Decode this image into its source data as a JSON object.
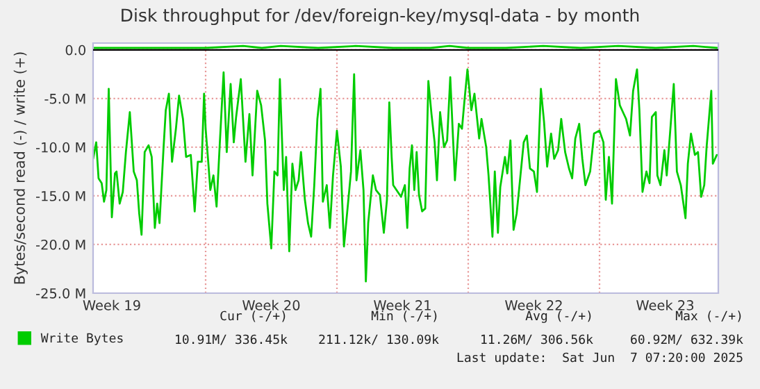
{
  "chart_data": {
    "type": "line",
    "title": "Disk throughput for /dev/foreign-key/mysql-data - by month",
    "ylabel": "Bytes/second read (-) / write (+)",
    "xlim": [
      "2025-05-06T00:00",
      "2025-06-08T08:00"
    ],
    "xticks": [
      {
        "value": "2025-05-07T00:00",
        "label": "Week 19"
      },
      {
        "value": "2025-05-15T12:00",
        "label": "Week 20"
      },
      {
        "value": "2025-05-22T12:00",
        "label": "Week 21"
      },
      {
        "value": "2025-05-29T12:00",
        "label": "Week 22"
      },
      {
        "value": "2025-06-05T12:00",
        "label": "Week 23"
      }
    ],
    "ylim": [
      -25,
      0.7
    ],
    "yticks": [
      {
        "value": 0,
        "label": "0.0"
      },
      {
        "value": -5,
        "label": "-5.0 M"
      },
      {
        "value": -10,
        "label": "-10.0 M"
      },
      {
        "value": -15,
        "label": "-15.0 M"
      },
      {
        "value": -20,
        "label": "-20.0 M"
      },
      {
        "value": -25,
        "label": "-25.0 M"
      }
    ],
    "grid": "y",
    "legend": "bottom",
    "ref_lines": [
      {
        "axis": "x",
        "value": "2025-05-12",
        "color": "#e89a9a",
        "line_style": "dotted"
      },
      {
        "axis": "x",
        "value": "2025-05-19",
        "color": "#e89a9a",
        "line_style": "dotted"
      },
      {
        "axis": "x",
        "value": "2025-05-26",
        "color": "#e89a9a",
        "line_style": "dotted"
      },
      {
        "axis": "x",
        "value": "2025-06-02",
        "color": "#e89a9a",
        "line_style": "dotted"
      },
      {
        "axis": "y",
        "value": 0,
        "color": "#000000",
        "line_style": "solid"
      }
    ],
    "series": [
      {
        "name": "Write Bytes",
        "color": "#00cc00",
        "x": [
          "2025-05-06T00:00",
          "2025-05-06T04:00",
          "2025-05-06T07:00",
          "2025-05-06T11:00",
          "2025-05-06T14:00",
          "2025-05-06T17:00",
          "2025-05-06T20:00",
          "2025-05-07T00:00",
          "2025-05-07T04:00",
          "2025-05-07T06:00",
          "2025-05-07T10:00",
          "2025-05-07T14:00",
          "2025-05-07T18:00",
          "2025-05-07T23:00",
          "2025-05-08T04:00",
          "2025-05-08T08:00",
          "2025-05-08T11:00",
          "2025-05-08T14:00",
          "2025-05-08T18:00",
          "2025-05-08T23:00",
          "2025-05-09T03:00",
          "2025-05-09T07:00",
          "2025-05-09T10:00",
          "2025-05-09T13:00",
          "2025-05-09T18:00",
          "2025-05-09T21:00",
          "2025-05-10T01:00",
          "2025-05-10T05:00",
          "2025-05-10T10:00",
          "2025-05-10T14:00",
          "2025-05-10T19:00",
          "2025-05-10T23:00",
          "2025-05-11T05:00",
          "2025-05-11T10:00",
          "2025-05-11T14:00",
          "2025-05-11T19:00",
          "2025-05-11T22:00",
          "2025-05-12T00:00",
          "2025-05-12T04:00",
          "2025-05-12T06:00",
          "2025-05-12T10:00",
          "2025-05-12T14:00",
          "2025-05-12T18:00",
          "2025-05-12T23:00",
          "2025-05-13T03:00",
          "2025-05-13T08:00",
          "2025-05-13T12:00",
          "2025-05-13T15:00",
          "2025-05-13T21:00",
          "2025-05-14T03:00",
          "2025-05-14T08:00",
          "2025-05-14T12:00",
          "2025-05-14T18:00",
          "2025-05-14T23:00",
          "2025-05-15T04:00",
          "2025-05-15T07:00",
          "2025-05-15T12:00",
          "2025-05-15T16:00",
          "2025-05-15T20:00",
          "2025-05-15T23:00",
          "2025-05-16T04:00",
          "2025-05-16T07:00",
          "2025-05-16T11:00",
          "2025-05-16T15:00",
          "2025-05-16T19:00",
          "2025-05-16T23:00",
          "2025-05-17T02:00",
          "2025-05-17T07:00",
          "2025-05-17T11:00",
          "2025-05-17T15:00",
          "2025-05-17T19:00",
          "2025-05-17T23:00",
          "2025-05-18T03:00",
          "2025-05-18T06:00",
          "2025-05-18T11:00",
          "2025-05-18T15:00",
          "2025-05-18T19:00",
          "2025-05-19T00:00",
          "2025-05-19T05:00",
          "2025-05-19T09:00",
          "2025-05-19T13:00",
          "2025-05-19T18:00",
          "2025-05-19T22:00",
          "2025-05-20T01:00",
          "2025-05-20T06:00",
          "2025-05-20T10:00",
          "2025-05-20T13:00",
          "2025-05-20T16:00",
          "2025-05-20T22:00",
          "2025-05-21T02:00",
          "2025-05-21T07:00",
          "2025-05-21T12:00",
          "2025-05-21T16:00",
          "2025-05-21T19:00",
          "2025-05-21T22:00",
          "2025-05-22T00:00",
          "2025-05-22T10:00",
          "2025-05-22T15:00",
          "2025-05-22T18:00",
          "2025-05-22T21:00",
          "2025-05-23T00:00",
          "2025-05-23T03:00",
          "2025-05-23T06:00",
          "2025-05-23T09:00",
          "2025-05-23T13:00",
          "2025-05-23T17:00",
          "2025-05-23T21:00",
          "2025-05-24T01:00",
          "2025-05-24T05:00",
          "2025-05-24T08:00",
          "2025-05-24T12:00",
          "2025-05-24T17:00",
          "2025-05-24T21:00",
          "2025-05-25T01:00",
          "2025-05-25T07:00",
          "2025-05-25T12:00",
          "2025-05-25T16:00",
          "2025-05-25T19:00",
          "2025-05-25T23:00",
          "2025-05-26T04:00",
          "2025-05-26T08:00",
          "2025-05-26T14:00",
          "2025-05-26T17:00",
          "2025-05-26T23:00",
          "2025-05-27T02:00",
          "2025-05-27T07:00",
          "2025-05-27T10:00",
          "2025-05-27T14:00",
          "2025-05-27T17:00",
          "2025-05-27T23:00",
          "2025-05-28T02:00",
          "2025-05-28T06:00",
          "2025-05-28T10:00",
          "2025-05-28T14:00",
          "2025-05-28T17:00",
          "2025-05-28T23:00",
          "2025-05-29T03:00",
          "2025-05-29T07:00",
          "2025-05-29T12:00",
          "2025-05-29T16:00",
          "2025-05-29T21:00",
          "2025-05-30T01:00",
          "2025-05-30T05:00",
          "2025-05-30T10:00",
          "2025-05-30T14:00",
          "2025-05-30T19:00",
          "2025-05-30T23:00",
          "2025-05-31T04:00",
          "2025-05-31T09:00",
          "2025-05-31T13:00",
          "2025-05-31T17:00",
          "2025-05-31T22:00",
          "2025-06-01T02:00",
          "2025-06-01T06:00",
          "2025-06-01T12:00",
          "2025-06-01T17:00",
          "2025-06-02T00:00",
          "2025-06-02T05:00",
          "2025-06-02T08:00",
          "2025-06-02T12:00",
          "2025-06-02T16:00",
          "2025-06-02T21:00",
          "2025-06-03T02:00",
          "2025-06-03T06:00",
          "2025-06-03T10:00",
          "2025-06-03T15:00",
          "2025-06-03T19:00",
          "2025-06-04T00:00",
          "2025-06-04T03:00",
          "2025-06-04T07:00",
          "2025-06-04T12:00",
          "2025-06-04T16:00",
          "2025-06-04T19:00",
          "2025-06-05T00:00",
          "2025-06-05T02:00",
          "2025-06-05T06:00",
          "2025-06-05T11:00",
          "2025-06-05T14:00",
          "2025-06-05T18:00",
          "2025-06-05T23:00",
          "2025-06-06T03:00",
          "2025-06-06T08:00",
          "2025-06-06T14:00",
          "2025-06-06T17:00",
          "2025-06-06T21:00",
          "2025-06-07T02:00",
          "2025-06-07T06:00",
          "2025-06-07T10:00",
          "2025-06-07T14:00",
          "2025-06-07T17:00",
          "2025-06-07T23:00",
          "2025-06-08T01:00",
          "2025-06-08T06:00"
        ],
        "values": [
          -11.2,
          -9.5,
          -13.2,
          -13.7,
          -15.6,
          -14.4,
          -4.0,
          -17.2,
          -12.7,
          -12.5,
          -15.8,
          -14.6,
          -10.5,
          -6.4,
          -12.5,
          -13.4,
          -16.8,
          -19.0,
          -10.5,
          -9.8,
          -11.0,
          -18.3,
          -15.8,
          -17.8,
          -10.3,
          -6.2,
          -4.5,
          -11.5,
          -8.1,
          -4.7,
          -7.1,
          -11.0,
          -10.8,
          -16.6,
          -11.5,
          -11.5,
          -4.5,
          -8.1,
          -12.2,
          -14.4,
          -12.9,
          -16.1,
          -9.8,
          -2.3,
          -10.5,
          -3.5,
          -9.5,
          -6.9,
          -3.0,
          -11.5,
          -6.6,
          -12.9,
          -4.2,
          -5.7,
          -9.3,
          -15.8,
          -20.4,
          -12.5,
          -12.9,
          -3.0,
          -14.4,
          -11.0,
          -20.7,
          -11.7,
          -14.4,
          -13.4,
          -10.5,
          -15.4,
          -17.8,
          -19.2,
          -13.9,
          -7.1,
          -4.0,
          -15.6,
          -13.9,
          -18.3,
          -12.9,
          -8.3,
          -12.0,
          -20.2,
          -16.8,
          -12.5,
          -2.5,
          -13.4,
          -10.3,
          -14.4,
          -23.8,
          -17.8,
          -12.9,
          -14.4,
          -14.9,
          -18.8,
          -15.4,
          -5.4,
          -11.0,
          -13.9,
          -15.1,
          -13.9,
          -18.3,
          -12.2,
          -9.8,
          -14.4,
          -10.5,
          -14.9,
          -16.6,
          -16.3,
          -3.2,
          -6.6,
          -9.5,
          -13.4,
          -6.4,
          -10.0,
          -9.3,
          -2.8,
          -13.4,
          -7.6,
          -8.1,
          -5.4,
          -2.0,
          -6.2,
          -4.5,
          -9.1,
          -7.1,
          -10.0,
          -12.9,
          -19.2,
          -12.5,
          -18.8,
          -14.1,
          -11.0,
          -12.7,
          -9.3,
          -18.5,
          -16.8,
          -14.4,
          -9.5,
          -8.8,
          -12.2,
          -12.5,
          -14.6,
          -4.0,
          -7.4,
          -12.0,
          -8.6,
          -11.2,
          -10.3,
          -7.1,
          -10.5,
          -12.2,
          -13.2,
          -9.1,
          -7.6,
          -11.2,
          -13.9,
          -12.5,
          -8.6,
          -8.3,
          -9.5,
          -15.4,
          -11.0,
          -15.8,
          -3.0,
          -5.7,
          -6.4,
          -7.1,
          -8.8,
          -4.2,
          -2.0,
          -6.2,
          -14.6,
          -12.5,
          -13.7,
          -6.9,
          -6.4,
          -12.9,
          -13.9,
          -10.3,
          -12.9,
          -8.8,
          -3.5,
          -12.5,
          -13.9,
          -17.3,
          -11.7,
          -8.6,
          -10.8,
          -10.5,
          -15.1,
          -13.9,
          -10.0,
          -4.2,
          -11.7,
          -10.8
        ]
      },
      {
        "color": "#00cc00",
        "x": [
          "2025-05-06",
          "2025-05-08",
          "2025-05-10",
          "2025-05-12",
          "2025-05-14",
          "2025-05-15",
          "2025-05-16",
          "2025-05-18",
          "2025-05-20",
          "2025-05-22",
          "2025-05-24",
          "2025-05-25",
          "2025-05-26",
          "2025-05-28",
          "2025-05-30",
          "2025-06-01",
          "2025-06-03",
          "2025-06-05",
          "2025-06-07",
          "2025-06-08T07:00"
        ],
        "values": [
          0.2,
          0.2,
          0.2,
          0.2,
          0.4,
          0.2,
          0.4,
          0.2,
          0.4,
          0.2,
          0.2,
          0.4,
          0.2,
          0.2,
          0.4,
          0.2,
          0.4,
          0.2,
          0.4,
          0.2
        ]
      }
    ],
    "annotations": [
      "Cur (-/+)",
      "Min (-/+)",
      "Avg (-/+)",
      "Max (-/+)",
      "10.91M/ 336.45k",
      "211.12k/ 130.09k",
      "11.26M/ 306.56k",
      "60.92M/ 632.39k",
      "Last update:  Sat Jun  7 07:20:00 2025"
    ]
  }
}
